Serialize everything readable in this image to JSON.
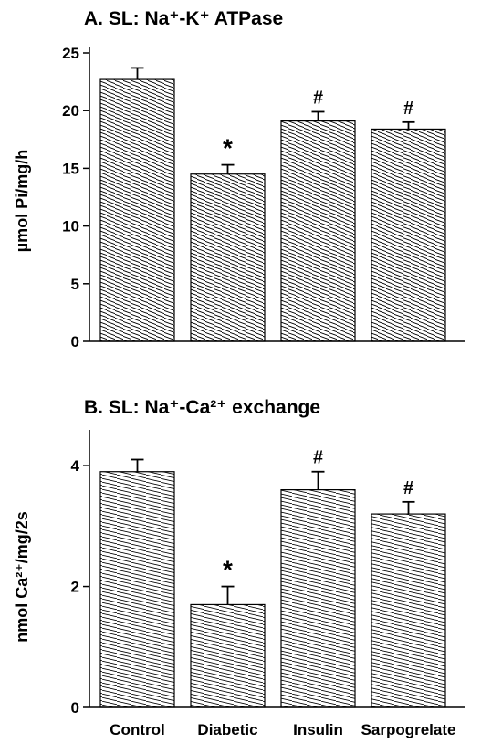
{
  "chart_data": [
    {
      "type": "bar",
      "title": "A. SL: Na⁺-K⁺ ATPase",
      "ylabel": "µmol Pi/mg/h",
      "ylim": [
        0,
        25
      ],
      "yticks": [
        "0",
        "5",
        "10",
        "15",
        "20",
        "25"
      ],
      "categories": [
        "Control",
        "Diabetic",
        "Insulin",
        "Sarpogrelate"
      ],
      "values": [
        22.7,
        14.5,
        19.1,
        18.4
      ],
      "errors": [
        1.0,
        0.8,
        0.8,
        0.6
      ],
      "annotations": [
        "",
        "*",
        "#",
        "#"
      ],
      "pattern": "diagonal hatch"
    },
    {
      "type": "bar",
      "title": "B. SL: Na⁺-Ca²⁺ exchange",
      "ylabel": "nmol Ca²⁺/mg/2s",
      "ylim": [
        0,
        4.5
      ],
      "yticks": [
        "0",
        "2",
        "4"
      ],
      "categories": [
        "Control",
        "Diabetic",
        "Insulin",
        "Sarpogrelate"
      ],
      "values": [
        3.9,
        1.7,
        3.6,
        3.2
      ],
      "errors": [
        0.2,
        0.3,
        0.3,
        0.2
      ],
      "annotations": [
        "",
        "*",
        "#",
        "#"
      ],
      "pattern": "diagonal hatch"
    }
  ],
  "colors": {
    "bar_fill": "#ffffff",
    "hatch": "#000000",
    "axis": "#000000"
  }
}
